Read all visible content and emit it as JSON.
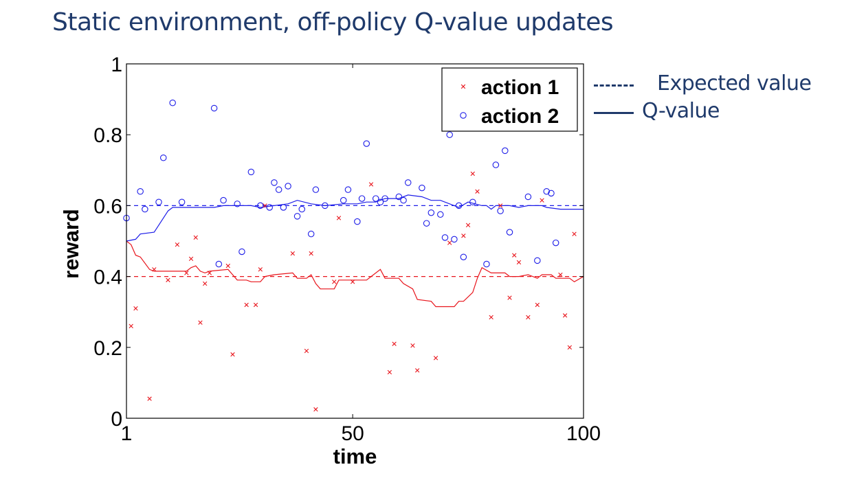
{
  "slide": {
    "title": "Static environment, off-policy Q-value updates",
    "legend_expected": "Expected value",
    "legend_q": "Q-value",
    "line_color": "#1f3a6b"
  },
  "chart_data": {
    "type": "scatter",
    "title": "",
    "xlabel": "time",
    "ylabel": "reward",
    "xlim": [
      1,
      100
    ],
    "ylim": [
      0,
      1
    ],
    "xticks": [
      1,
      50,
      100
    ],
    "yticks": [
      0,
      0.2,
      0.4,
      0.6,
      0.8,
      1
    ],
    "ytick_labels": [
      "0",
      "0.2",
      "0.4",
      "0.6",
      "0.8",
      "1"
    ],
    "grid": false,
    "legend_position": "top-right",
    "series": [
      {
        "name": "action 1",
        "marker": "x",
        "color": "#e8141b",
        "expected": 0.4,
        "points": [
          [
            2,
            0.26
          ],
          [
            3,
            0.31
          ],
          [
            6,
            0.055
          ],
          [
            7,
            0.42
          ],
          [
            10,
            0.39
          ],
          [
            12,
            0.49
          ],
          [
            14,
            0.41
          ],
          [
            15,
            0.45
          ],
          [
            16,
            0.51
          ],
          [
            17,
            0.27
          ],
          [
            18,
            0.38
          ],
          [
            19,
            0.41
          ],
          [
            23,
            0.43
          ],
          [
            24,
            0.18
          ],
          [
            27,
            0.32
          ],
          [
            29,
            0.32
          ],
          [
            30,
            0.42
          ],
          [
            31,
            0.6
          ],
          [
            37,
            0.465
          ],
          [
            40,
            0.19
          ],
          [
            41,
            0.465
          ],
          [
            42,
            0.025
          ],
          [
            46,
            0.385
          ],
          [
            47,
            0.565
          ],
          [
            50,
            0.385
          ],
          [
            54,
            0.66
          ],
          [
            58,
            0.13
          ],
          [
            59,
            0.21
          ],
          [
            63,
            0.205
          ],
          [
            64,
            0.135
          ],
          [
            68,
            0.17
          ],
          [
            71,
            0.495
          ],
          [
            74,
            0.515
          ],
          [
            75,
            0.545
          ],
          [
            76,
            0.69
          ],
          [
            77,
            0.64
          ],
          [
            80,
            0.285
          ],
          [
            82,
            0.6
          ],
          [
            84,
            0.34
          ],
          [
            85,
            0.46
          ],
          [
            86,
            0.44
          ],
          [
            88,
            0.285
          ],
          [
            90,
            0.32
          ],
          [
            91,
            0.615
          ],
          [
            95,
            0.405
          ],
          [
            96,
            0.29
          ],
          [
            97,
            0.2
          ],
          [
            98,
            0.52
          ]
        ],
        "q_values": [
          [
            1,
            0.5
          ],
          [
            2,
            0.49
          ],
          [
            3,
            0.46
          ],
          [
            4,
            0.455
          ],
          [
            6,
            0.42
          ],
          [
            7,
            0.415
          ],
          [
            14,
            0.415
          ],
          [
            15,
            0.425
          ],
          [
            16,
            0.43
          ],
          [
            17,
            0.415
          ],
          [
            18,
            0.41
          ],
          [
            19,
            0.415
          ],
          [
            23,
            0.42
          ],
          [
            24,
            0.405
          ],
          [
            25,
            0.39
          ],
          [
            27,
            0.39
          ],
          [
            28,
            0.385
          ],
          [
            30,
            0.385
          ],
          [
            31,
            0.4
          ],
          [
            33,
            0.405
          ],
          [
            37,
            0.41
          ],
          [
            38,
            0.395
          ],
          [
            40,
            0.395
          ],
          [
            41,
            0.405
          ],
          [
            42,
            0.38
          ],
          [
            43,
            0.365
          ],
          [
            46,
            0.365
          ],
          [
            47,
            0.39
          ],
          [
            53,
            0.39
          ],
          [
            54,
            0.4
          ],
          [
            56,
            0.42
          ],
          [
            57,
            0.395
          ],
          [
            60,
            0.395
          ],
          [
            61,
            0.38
          ],
          [
            63,
            0.365
          ],
          [
            64,
            0.335
          ],
          [
            67,
            0.33
          ],
          [
            68,
            0.315
          ],
          [
            72,
            0.315
          ],
          [
            73,
            0.33
          ],
          [
            74,
            0.33
          ],
          [
            76,
            0.355
          ],
          [
            77,
            0.395
          ],
          [
            78,
            0.425
          ],
          [
            80,
            0.41
          ],
          [
            83,
            0.41
          ],
          [
            84,
            0.4
          ],
          [
            86,
            0.4
          ],
          [
            88,
            0.405
          ],
          [
            90,
            0.395
          ],
          [
            91,
            0.405
          ],
          [
            93,
            0.405
          ],
          [
            94,
            0.395
          ],
          [
            97,
            0.395
          ],
          [
            98,
            0.385
          ],
          [
            100,
            0.4
          ]
        ]
      },
      {
        "name": "action 2",
        "marker": "o",
        "color": "#1c1ce8",
        "expected": 0.6,
        "points": [
          [
            1,
            0.565
          ],
          [
            4,
            0.64
          ],
          [
            5,
            0.59
          ],
          [
            8,
            0.61
          ],
          [
            9,
            0.735
          ],
          [
            11,
            0.89
          ],
          [
            13,
            0.61
          ],
          [
            20,
            0.875
          ],
          [
            21,
            0.435
          ],
          [
            22,
            0.615
          ],
          [
            25,
            0.605
          ],
          [
            26,
            0.47
          ],
          [
            28,
            0.695
          ],
          [
            30,
            0.6
          ],
          [
            32,
            0.595
          ],
          [
            33,
            0.665
          ],
          [
            34,
            0.645
          ],
          [
            35,
            0.595
          ],
          [
            36,
            0.655
          ],
          [
            38,
            0.57
          ],
          [
            39,
            0.59
          ],
          [
            41,
            0.52
          ],
          [
            42,
            0.645
          ],
          [
            44,
            0.6
          ],
          [
            48,
            0.615
          ],
          [
            49,
            0.645
          ],
          [
            51,
            0.555
          ],
          [
            52,
            0.62
          ],
          [
            53,
            0.775
          ],
          [
            55,
            0.62
          ],
          [
            56,
            0.61
          ],
          [
            57,
            0.62
          ],
          [
            60,
            0.625
          ],
          [
            61,
            0.615
          ],
          [
            62,
            0.665
          ],
          [
            65,
            0.65
          ],
          [
            66,
            0.55
          ],
          [
            67,
            0.58
          ],
          [
            69,
            0.575
          ],
          [
            70,
            0.51
          ],
          [
            71,
            0.8
          ],
          [
            72,
            0.505
          ],
          [
            73,
            0.6
          ],
          [
            74,
            0.455
          ],
          [
            76,
            0.61
          ],
          [
            79,
            0.435
          ],
          [
            81,
            0.715
          ],
          [
            82,
            0.585
          ],
          [
            83,
            0.755
          ],
          [
            84,
            0.525
          ],
          [
            88,
            0.625
          ],
          [
            90,
            0.445
          ],
          [
            92,
            0.64
          ],
          [
            93,
            0.635
          ],
          [
            94,
            0.495
          ]
        ],
        "q_values": [
          [
            1,
            0.5
          ],
          [
            3,
            0.505
          ],
          [
            4,
            0.52
          ],
          [
            7,
            0.525
          ],
          [
            8,
            0.545
          ],
          [
            10,
            0.585
          ],
          [
            11,
            0.595
          ],
          [
            20,
            0.595
          ],
          [
            22,
            0.6
          ],
          [
            28,
            0.6
          ],
          [
            30,
            0.595
          ],
          [
            33,
            0.6
          ],
          [
            36,
            0.605
          ],
          [
            38,
            0.615
          ],
          [
            41,
            0.605
          ],
          [
            44,
            0.6
          ],
          [
            48,
            0.605
          ],
          [
            51,
            0.605
          ],
          [
            53,
            0.61
          ],
          [
            55,
            0.61
          ],
          [
            57,
            0.62
          ],
          [
            60,
            0.62
          ],
          [
            62,
            0.63
          ],
          [
            65,
            0.625
          ],
          [
            67,
            0.615
          ],
          [
            69,
            0.615
          ],
          [
            72,
            0.6
          ],
          [
            73,
            0.595
          ],
          [
            75,
            0.61
          ],
          [
            78,
            0.6
          ],
          [
            79,
            0.6
          ],
          [
            80,
            0.59
          ],
          [
            81,
            0.6
          ],
          [
            84,
            0.6
          ],
          [
            86,
            0.595
          ],
          [
            88,
            0.6
          ],
          [
            91,
            0.6
          ],
          [
            92,
            0.595
          ],
          [
            95,
            0.59
          ],
          [
            100,
            0.59
          ]
        ]
      }
    ]
  }
}
